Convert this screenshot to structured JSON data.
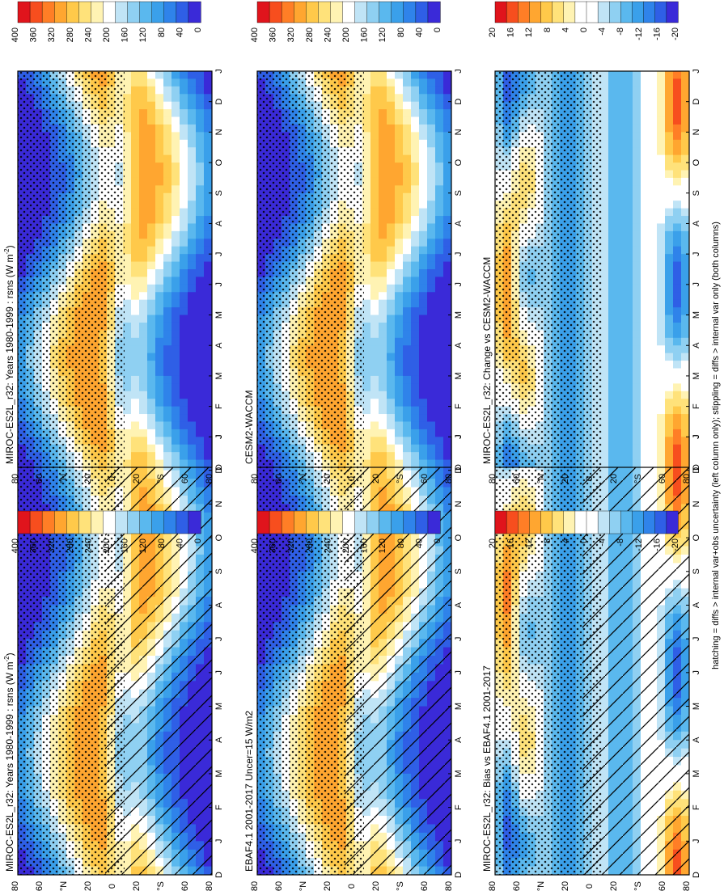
{
  "chart_data": {
    "type": "heatmap",
    "suptitle": "hatching = diffs > internal var+obs uncertainty (left column only); stippling = diffs > internal var only (both columns)",
    "variable": "rsns",
    "units": "W m-2",
    "month_labels": [
      "D",
      "J",
      "F",
      "M",
      "A",
      "M",
      "J",
      "J",
      "A",
      "S",
      "O",
      "N",
      "D",
      "J"
    ],
    "lat_labels": [
      "80",
      "60",
      "°N",
      "20",
      "0",
      "20",
      "°S",
      "60",
      "80"
    ],
    "lat_values": [
      80,
      60,
      40,
      20,
      0,
      -20,
      -40,
      -60,
      -80
    ],
    "panels": [
      {
        "id": "p1",
        "title": "MIROC-ES2L_r32: Years 1980-1999 : rsns (W m",
        "title_sup": "-2",
        "title_end": ")",
        "scale": "abs",
        "hatching": true,
        "stippling": true,
        "colorbar_labels": [
          "400",
          "360",
          "320",
          "280",
          "240",
          "200",
          "160",
          "120",
          "80",
          "40",
          "0"
        ]
      },
      {
        "id": "p2",
        "title": "MIROC-ES2L_r32: Years 1980-1999 : rsns (W m",
        "title_sup": "-2",
        "title_end": ")",
        "scale": "abs",
        "hatching": false,
        "stippling": true,
        "colorbar_labels": [
          "400",
          "360",
          "320",
          "280",
          "240",
          "200",
          "160",
          "120",
          "80",
          "40",
          "0"
        ]
      },
      {
        "id": "p3",
        "title": "EBAF4.1 2001-2017 Uncer=15 W/m2",
        "scale": "abs",
        "hatching": true,
        "stippling": true,
        "colorbar_labels": [
          "400",
          "360",
          "320",
          "280",
          "240",
          "200",
          "160",
          "120",
          "80",
          "40",
          "0"
        ]
      },
      {
        "id": "p4",
        "title": "CESM2-WACCM",
        "scale": "abs",
        "hatching": false,
        "stippling": true,
        "colorbar_labels": [
          "400",
          "360",
          "320",
          "280",
          "240",
          "200",
          "160",
          "120",
          "80",
          "40",
          "0"
        ]
      },
      {
        "id": "p5",
        "title": "MIROC-ES2L_r32: Bias vs EBAF4.1 2001-2017",
        "scale": "diff",
        "hatching": true,
        "stippling": true,
        "colorbar_labels": [
          "20",
          "16",
          "12",
          "8",
          "4",
          "0",
          "-4",
          "-8",
          "-12",
          "-16",
          "-20"
        ]
      },
      {
        "id": "p6",
        "title": "MIROC-ES2L_r32: Change vs CESM2-WACCM",
        "scale": "diff",
        "hatching": false,
        "stippling": true,
        "colorbar_labels": [
          "20",
          "16",
          "12",
          "8",
          "4",
          "0",
          "-4",
          "-8",
          "-12",
          "-16",
          "-20"
        ]
      }
    ],
    "abs_colors": [
      "#3a2ad8",
      "#2f5fe6",
      "#2f83ea",
      "#3aa0ea",
      "#5ab8ee",
      "#8fd0f2",
      "#c0e4f6",
      "#ffffff",
      "#fff3b3",
      "#ffe27a",
      "#ffc94a",
      "#ffa630",
      "#ff7e26",
      "#f74e1e",
      "#e0141c"
    ],
    "diff_colors": [
      "#3a2ad8",
      "#2f5fe6",
      "#2f83ea",
      "#3aa0ea",
      "#5ab8ee",
      "#8fd0f2",
      "#c0e4f6",
      "#ffffff",
      "#ffffff",
      "#fff3b3",
      "#ffe27a",
      "#ffc94a",
      "#ffa630",
      "#ff7e26",
      "#f74e1e",
      "#e0141c"
    ]
  }
}
